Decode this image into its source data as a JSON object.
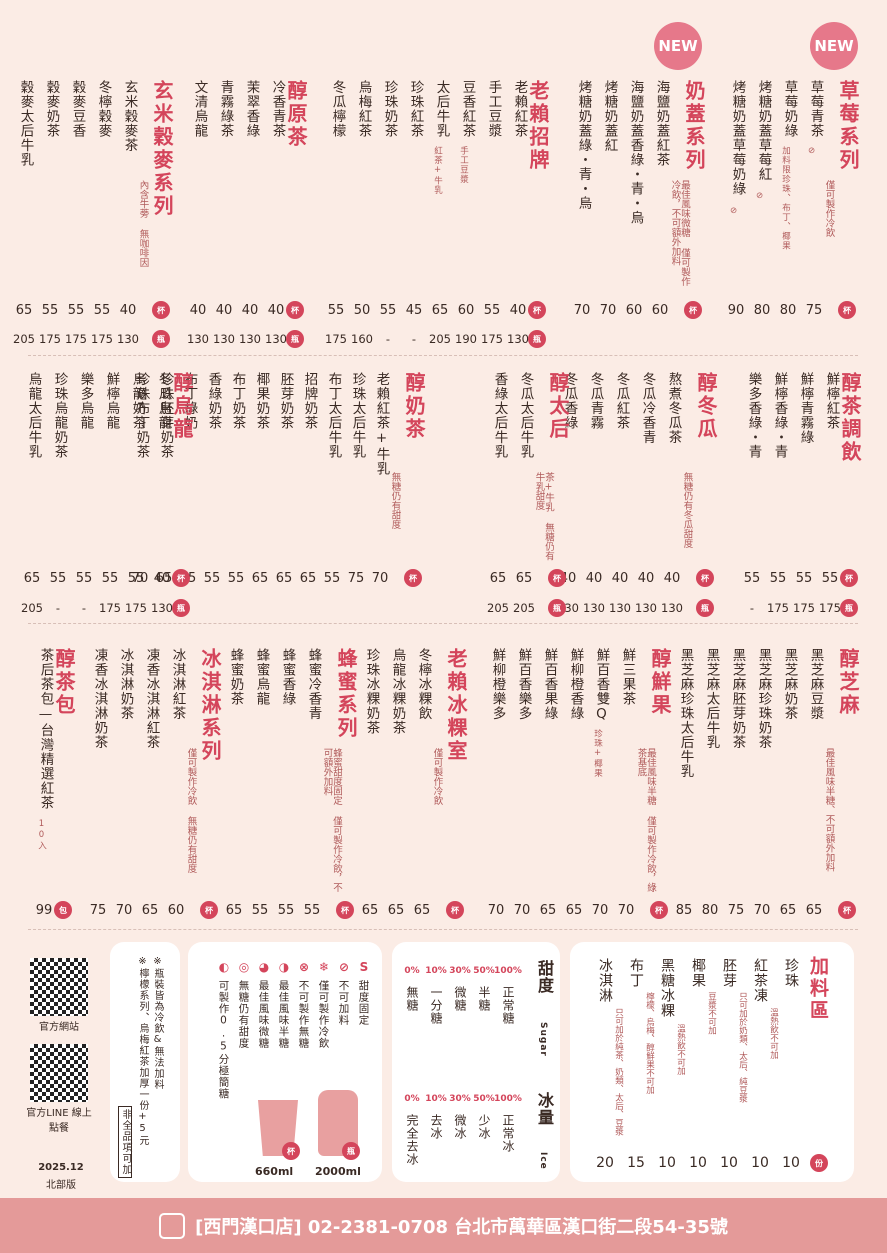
{
  "new_badge": "NEW",
  "row1": {
    "sections": [
      {
        "title": "草莓系列",
        "note": "僅可製作冷飲",
        "items": [
          [
            "草莓青茶",
            "⊘"
          ],
          [
            "草莓奶綠",
            "加料限珍珠、布丁、椰果"
          ],
          [
            "烤糖奶蓋草莓紅",
            "⊘"
          ],
          [
            "烤糖奶蓋草莓奶綠",
            "⊘"
          ]
        ],
        "cup": [
          "75",
          "80",
          "80",
          "90"
        ]
      },
      {
        "title": "奶蓋系列",
        "note": "最佳風味微糖 僅可製作冷飲，不可額外加料",
        "items": [
          [
            "海鹽奶蓋紅茶",
            ""
          ],
          [
            "海鹽奶蓋香綠・青・烏",
            ""
          ],
          [
            "烤糖奶蓋紅",
            ""
          ],
          [
            "烤糖奶蓋綠・青・烏",
            ""
          ]
        ],
        "cup": [
          "60",
          "60",
          "70",
          "70"
        ]
      },
      {
        "title": "老賴招牌",
        "items": [
          [
            "老賴紅茶",
            ""
          ],
          [
            "手工豆漿",
            ""
          ],
          [
            "豆香紅茶",
            "手工豆漿"
          ],
          [
            "太后牛乳",
            "紅茶+牛乳"
          ],
          [
            "珍珠紅茶",
            ""
          ],
          [
            "珍珠奶茶",
            ""
          ],
          [
            "烏梅紅茶",
            ""
          ],
          [
            "冬瓜檸檬",
            ""
          ]
        ],
        "cup": [
          "40",
          "55",
          "60",
          "65",
          "45",
          "55",
          "50",
          "55"
        ],
        "bottle": [
          "130",
          "175",
          "190",
          "205",
          "-",
          "-",
          "160",
          "175"
        ]
      },
      {
        "title": "醇原茶",
        "items": [
          [
            "冷香青茶",
            ""
          ],
          [
            "茉翠香綠",
            ""
          ],
          [
            "青霧綠茶",
            ""
          ],
          [
            "文清烏龍",
            ""
          ]
        ],
        "cup": [
          "40",
          "40",
          "40",
          "40"
        ],
        "bottle": [
          "130",
          "130",
          "130",
          "130"
        ]
      },
      {
        "title": "玄米穀麥系列",
        "note": "內含牛蒡 無咖啡因",
        "items": [
          [
            "玄米穀麥茶",
            ""
          ],
          [
            "冬檸穀麥",
            ""
          ],
          [
            "穀麥豆香",
            ""
          ],
          [
            "穀麥奶茶",
            ""
          ],
          [
            "穀麥太后牛乳",
            ""
          ]
        ],
        "cup": [
          "40",
          "55",
          "55",
          "55",
          "65"
        ],
        "bottle": [
          "130",
          "175",
          "175",
          "175",
          "205"
        ]
      }
    ]
  },
  "row2": {
    "sections": [
      {
        "title": "醇茶調飲",
        "items": [
          [
            "鮮檸紅茶",
            ""
          ],
          [
            "鮮檸青霧綠",
            ""
          ],
          [
            "鮮檸香綠・青",
            ""
          ],
          [
            "樂多香綠・青",
            ""
          ]
        ],
        "cup": [
          "55",
          "55",
          "55",
          "55"
        ],
        "bottle": [
          "175",
          "175",
          "175",
          "-"
        ]
      },
      {
        "title": "醇冬瓜",
        "note": "無糖仍有冬瓜甜度",
        "items": [
          [
            "熬煮冬瓜茶",
            ""
          ],
          [
            "冬瓜冷香青",
            ""
          ],
          [
            "冬瓜紅茶",
            ""
          ],
          [
            "冬瓜青霧",
            ""
          ],
          [
            "冬瓜香綠",
            ""
          ]
        ],
        "cup": [
          "40",
          "40",
          "40",
          "40",
          "40"
        ],
        "bottle": [
          "130",
          "130",
          "130",
          "130",
          "130"
        ]
      },
      {
        "title": "醇太后",
        "note": "茶+牛乳 無糖仍有牛乳甜度",
        "items": [
          [
            "冬瓜太后牛乳",
            ""
          ],
          [
            "香綠太后牛乳",
            ""
          ]
        ],
        "cup": [
          "65",
          "65"
        ],
        "bottle": [
          "205",
          "205"
        ]
      },
      {
        "title": "醇奶茶",
        "note": "無糖仍有甜度",
        "items": [
          [
            "老賴紅茶+牛乳",
            ""
          ],
          [
            "珍珠太后牛乳",
            ""
          ],
          [
            "布丁太后牛乳",
            ""
          ],
          [
            "招牌奶茶",
            ""
          ],
          [
            "胚芽奶茶",
            ""
          ],
          [
            "椰果奶茶",
            ""
          ],
          [
            "布丁奶茶",
            ""
          ],
          [
            "香綠奶茶",
            ""
          ],
          [
            "布丁綠奶",
            ""
          ],
          [
            "珍珠胚芽奶茶",
            ""
          ],
          [
            "珍珠布丁奶茶",
            ""
          ]
        ],
        "cup": [
          "70",
          "75",
          "55",
          "65",
          "65",
          "65",
          "55",
          "55",
          "65",
          "65",
          "70"
        ]
      },
      {
        "title": "醇烏龍",
        "items": [
          [
            "冬瓜烏龍",
            ""
          ],
          [
            "烏龍奶茶",
            ""
          ],
          [
            "鮮檸烏龍",
            ""
          ],
          [
            "樂多烏龍",
            ""
          ],
          [
            "珍珠烏龍奶茶",
            ""
          ],
          [
            "烏龍太后牛乳",
            ""
          ]
        ],
        "cup": [
          "40",
          "55",
          "55",
          "55",
          "55",
          "65"
        ],
        "bottle": [
          "130",
          "175",
          "175",
          "-",
          "-",
          "205"
        ]
      }
    ]
  },
  "row3": {
    "sections": [
      {
        "title": "醇芝麻",
        "note": "最佳風味半糖、不可額外加料",
        "items": [
          [
            "黑芝麻豆漿",
            ""
          ],
          [
            "黑芝麻奶茶",
            ""
          ],
          [
            "黑芝麻珍珠奶茶",
            ""
          ],
          [
            "黑芝麻胚芽奶茶",
            ""
          ],
          [
            "黑芝麻太后牛乳",
            ""
          ],
          [
            "黑芝麻珍珠太后牛乳",
            ""
          ]
        ],
        "cup": [
          "65",
          "65",
          "70",
          "75",
          "80",
          "85"
        ]
      },
      {
        "title": "醇鮮果",
        "note": "最佳風味半糖 僅可製作冷飲，綠茶基底",
        "items": [
          [
            "鮮三果茶",
            ""
          ],
          [
            "鮮百香雙Q",
            "珍珠+椰果"
          ],
          [
            "鮮柳橙香綠",
            ""
          ],
          [
            "鮮百香果綠",
            ""
          ],
          [
            "鮮百香樂多",
            ""
          ],
          [
            "鮮柳橙樂多",
            ""
          ]
        ],
        "cup": [
          "70",
          "70",
          "65",
          "65",
          "70",
          "70"
        ]
      },
      {
        "title": "老賴冰粿室",
        "note": "僅可製作冷飲",
        "items": [
          [
            "冬檸冰粿飲",
            ""
          ],
          [
            "烏龍冰粿奶茶",
            ""
          ],
          [
            "珍珠冰粿奶茶",
            ""
          ]
        ],
        "cup": [
          "65",
          "65",
          "65"
        ]
      },
      {
        "title": "蜂蜜系列",
        "note": "蜂蜜甜度固定 僅可製作冷飲，不可額外加料",
        "items": [
          [
            "蜂蜜冷香青",
            ""
          ],
          [
            "蜂蜜香綠",
            ""
          ],
          [
            "蜂蜜烏龍",
            ""
          ],
          [
            "蜂蜜奶茶",
            ""
          ]
        ],
        "cup": [
          "55",
          "55",
          "55",
          "65"
        ]
      },
      {
        "title": "冰淇淋系列",
        "note": "僅可製作冷飲 無糖仍有甜度",
        "items": [
          [
            "冰淇淋紅茶",
            ""
          ],
          [
            "凍香冰淇淋紅茶",
            ""
          ],
          [
            "冰淇淋奶茶",
            ""
          ],
          [
            "凍香冰淇淋奶茶",
            ""
          ]
        ],
        "cup": [
          "60",
          "65",
          "70",
          "75"
        ]
      },
      {
        "title": "醇茶包",
        "items": [
          [
            "茶后茶包—台灣精選紅茶",
            "10入"
          ]
        ],
        "cup": [
          "99"
        ]
      }
    ]
  },
  "labels": {
    "cup": "杯",
    "bottle": "瓶",
    "pack": "包",
    "portion": "份"
  },
  "addons": {
    "title": "加料區",
    "items": [
      [
        "珍珠",
        ""
      ],
      [
        "紅茶凍",
        "溫熱飲不可加"
      ],
      [
        "胚芽",
        "只可加於奶類、太后、純豆漿"
      ],
      [
        "椰果",
        "豆漿不可加"
      ],
      [
        "黑糖冰粿",
        "溫熱飲不可加"
      ],
      [
        "布丁",
        "檸檬、烏梅、醇鮮果不可加"
      ],
      [
        "冰淇淋",
        "只可加於純茶、奶類、太后、豆漿"
      ]
    ],
    "prices": [
      "10",
      "10",
      "10",
      "10",
      "10",
      "15",
      "20"
    ]
  },
  "sugar": {
    "title": "甜度",
    "en": "Sugar",
    "levels": [
      [
        "100%",
        "正常糖"
      ],
      [
        "50%",
        "半糖"
      ],
      [
        "30%",
        "微糖"
      ],
      [
        "10%",
        "一分糖"
      ],
      [
        "0%",
        "無糖"
      ]
    ]
  },
  "ice": {
    "title": "冰量",
    "en": "Ice",
    "levels": [
      [
        "100%",
        "正常冰"
      ],
      [
        "50%",
        "少冰"
      ],
      [
        "30%",
        "微冰"
      ],
      [
        "10%",
        "去冰"
      ],
      [
        "0%",
        "完全去冰"
      ]
    ]
  },
  "legend": [
    [
      "S",
      "甜度固定"
    ],
    [
      "⊘",
      "不可加料"
    ],
    [
      "❄",
      "僅可製作冷飲"
    ],
    [
      "⊗",
      "不可製作無糖"
    ],
    [
      "◑",
      "最佳風味半糖"
    ],
    [
      "◕",
      "最佳風味微糖"
    ],
    [
      "◎",
      "無糖仍有甜度"
    ],
    [
      "◐",
      "可製作0.5分極簡糖"
    ]
  ],
  "sizes": {
    "cup": "660ml",
    "bottle": "2000ml"
  },
  "notes": [
    "※瓶裝皆為冷飲&無法加料",
    "※檸檬系列、烏梅紅茶加厚一份+5元",
    "非全品項可加"
  ],
  "qr": {
    "site": "官方網站",
    "line": "官方LINE 線上點餐"
  },
  "edition": {
    "date": "2025.12",
    "region": "北部版"
  },
  "footer": "[西門漢口店] 02-2381-0708 台北市萬華區漢口街二段54-35號",
  "colors": {
    "accent": "#d4455b",
    "bg": "#fbece5",
    "footer": "#e49a99"
  }
}
